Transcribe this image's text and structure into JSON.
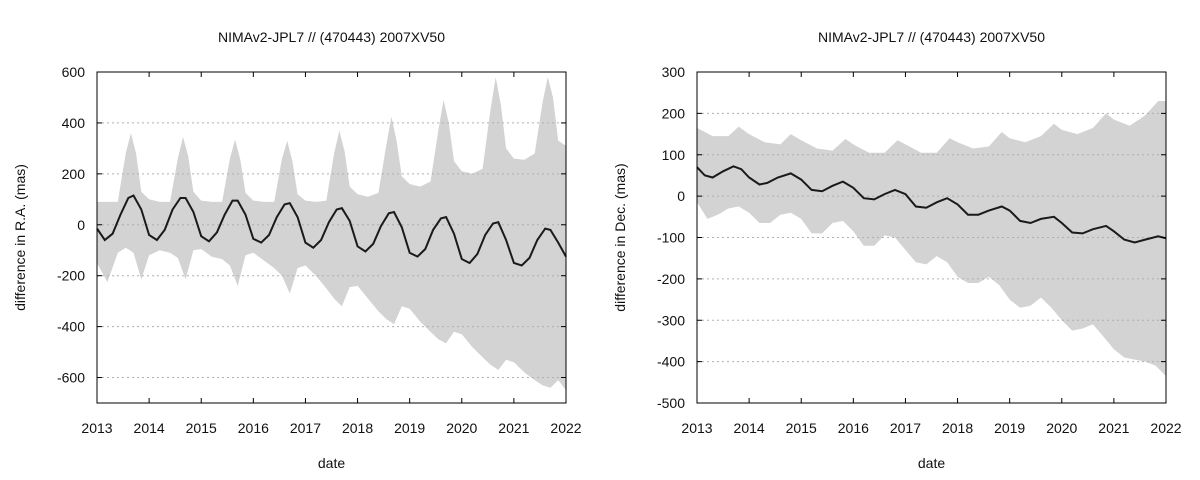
{
  "chart_data": [
    {
      "type": "area",
      "title": "NIMAv2-JPL7 // (470443) 2007XV50",
      "xlabel": "date",
      "ylabel": "difference in R.A. (mas)",
      "xlim": [
        2013,
        2022
      ],
      "ylim": [
        -700,
        600
      ],
      "xticks": [
        "2013",
        "2014",
        "2015",
        "2016",
        "2017",
        "2018",
        "2019",
        "2020",
        "2021",
        "2022"
      ],
      "yticks": [
        -600,
        -400,
        -200,
        0,
        200,
        400,
        600
      ],
      "grid": "horizontal-dotted",
      "band_color": "#d3d3d3",
      "line_color": "#1a1a1a",
      "band_upper": {
        "x": [
          2013.0,
          2013.2,
          2013.4,
          2013.55,
          2013.65,
          2013.75,
          2013.85,
          2014.0,
          2014.2,
          2014.4,
          2014.55,
          2014.65,
          2014.75,
          2014.85,
          2015.0,
          2015.2,
          2015.4,
          2015.55,
          2015.65,
          2015.75,
          2015.85,
          2016.0,
          2016.2,
          2016.4,
          2016.55,
          2016.65,
          2016.75,
          2016.85,
          2017.0,
          2017.2,
          2017.4,
          2017.55,
          2017.65,
          2017.75,
          2017.85,
          2018.0,
          2018.2,
          2018.4,
          2018.55,
          2018.65,
          2018.75,
          2018.85,
          2019.0,
          2019.2,
          2019.4,
          2019.55,
          2019.65,
          2019.75,
          2019.85,
          2020.0,
          2020.2,
          2020.4,
          2020.55,
          2020.65,
          2020.75,
          2020.85,
          2021.0,
          2021.2,
          2021.4,
          2021.55,
          2021.65,
          2021.75,
          2021.85,
          2022.0
        ],
        "y": [
          90,
          90,
          90,
          280,
          360,
          280,
          130,
          100,
          90,
          90,
          260,
          345,
          270,
          130,
          95,
          90,
          90,
          260,
          335,
          255,
          125,
          95,
          90,
          90,
          260,
          330,
          250,
          120,
          95,
          90,
          95,
          280,
          370,
          290,
          150,
          120,
          110,
          125,
          310,
          425,
          330,
          190,
          160,
          150,
          170,
          370,
          490,
          400,
          250,
          210,
          200,
          220,
          450,
          580,
          470,
          300,
          260,
          255,
          280,
          480,
          580,
          500,
          330,
          310
        ]
      },
      "band_lower": {
        "x": [
          2013.0,
          2013.2,
          2013.4,
          2013.55,
          2013.7,
          2013.85,
          2014.0,
          2014.2,
          2014.4,
          2014.55,
          2014.7,
          2014.85,
          2015.0,
          2015.2,
          2015.4,
          2015.55,
          2015.7,
          2015.85,
          2016.0,
          2016.2,
          2016.4,
          2016.55,
          2016.7,
          2016.85,
          2017.0,
          2017.2,
          2017.4,
          2017.55,
          2017.7,
          2017.85,
          2018.0,
          2018.2,
          2018.4,
          2018.55,
          2018.7,
          2018.85,
          2019.0,
          2019.2,
          2019.4,
          2019.55,
          2019.7,
          2019.85,
          2020.0,
          2020.2,
          2020.4,
          2020.55,
          2020.7,
          2020.85,
          2021.0,
          2021.2,
          2021.4,
          2021.55,
          2021.7,
          2021.85,
          2022.0
        ],
        "y": [
          -150,
          -225,
          -110,
          -90,
          -110,
          -215,
          -120,
          -100,
          -110,
          -130,
          -215,
          -100,
          -95,
          -125,
          -135,
          -160,
          -240,
          -120,
          -110,
          -140,
          -170,
          -200,
          -270,
          -170,
          -160,
          -200,
          -250,
          -290,
          -320,
          -245,
          -240,
          -290,
          -340,
          -370,
          -390,
          -320,
          -330,
          -380,
          -420,
          -450,
          -465,
          -420,
          -430,
          -480,
          -520,
          -550,
          -570,
          -530,
          -540,
          -580,
          -610,
          -630,
          -640,
          -610,
          -650
        ]
      },
      "series": [
        {
          "x": [
            2013.0,
            2013.15,
            2013.3,
            2013.45,
            2013.6,
            2013.7,
            2013.85,
            2014.0,
            2014.15,
            2014.3,
            2014.45,
            2014.6,
            2014.7,
            2014.85,
            2015.0,
            2015.15,
            2015.3,
            2015.45,
            2015.6,
            2015.7,
            2015.85,
            2016.0,
            2016.15,
            2016.3,
            2016.45,
            2016.6,
            2016.7,
            2016.85,
            2017.0,
            2017.15,
            2017.3,
            2017.45,
            2017.6,
            2017.7,
            2017.85,
            2018.0,
            2018.15,
            2018.3,
            2018.45,
            2018.6,
            2018.7,
            2018.85,
            2019.0,
            2019.15,
            2019.3,
            2019.45,
            2019.6,
            2019.7,
            2019.85,
            2020.0,
            2020.15,
            2020.3,
            2020.45,
            2020.6,
            2020.7,
            2020.85,
            2021.0,
            2021.15,
            2021.3,
            2021.45,
            2021.6,
            2021.7,
            2021.85,
            2022.0
          ],
          "y": [
            -15,
            -60,
            -35,
            40,
            105,
            115,
            60,
            -40,
            -60,
            -20,
            60,
            105,
            105,
            50,
            -45,
            -65,
            -30,
            40,
            95,
            95,
            40,
            -55,
            -70,
            -40,
            30,
            80,
            85,
            30,
            -70,
            -90,
            -60,
            10,
            60,
            65,
            15,
            -85,
            -105,
            -75,
            -5,
            45,
            50,
            -10,
            -110,
            -125,
            -95,
            -20,
            25,
            30,
            -35,
            -135,
            -150,
            -115,
            -40,
            5,
            10,
            -60,
            -150,
            -160,
            -130,
            -60,
            -15,
            -20,
            -70,
            -125
          ]
        }
      ]
    },
    {
      "type": "area",
      "title": "NIMAv2-JPL7 // (470443) 2007XV50",
      "xlabel": "date",
      "ylabel": "difference in Dec. (mas)",
      "xlim": [
        2013,
        2022
      ],
      "ylim": [
        -500,
        300
      ],
      "xticks": [
        "2013",
        "2014",
        "2015",
        "2016",
        "2017",
        "2018",
        "2019",
        "2020",
        "2021",
        "2022"
      ],
      "yticks": [
        -500,
        -400,
        -300,
        -200,
        -100,
        0,
        100,
        200,
        300
      ],
      "grid": "horizontal-dotted",
      "band_color": "#d3d3d3",
      "line_color": "#1a1a1a",
      "band_upper": {
        "x": [
          2013.0,
          2013.3,
          2013.6,
          2013.8,
          2014.0,
          2014.3,
          2014.6,
          2014.8,
          2015.0,
          2015.3,
          2015.6,
          2015.85,
          2016.0,
          2016.3,
          2016.6,
          2016.85,
          2017.0,
          2017.3,
          2017.6,
          2017.85,
          2018.0,
          2018.3,
          2018.6,
          2018.85,
          2019.0,
          2019.3,
          2019.6,
          2019.85,
          2020.0,
          2020.3,
          2020.6,
          2020.85,
          2021.0,
          2021.3,
          2021.6,
          2021.85,
          2022.0
        ],
        "y": [
          165,
          145,
          145,
          168,
          150,
          130,
          125,
          150,
          135,
          115,
          110,
          138,
          125,
          105,
          105,
          135,
          125,
          105,
          105,
          140,
          130,
          115,
          120,
          155,
          140,
          130,
          145,
          175,
          160,
          150,
          165,
          200,
          185,
          170,
          195,
          230,
          230
        ]
      },
      "band_lower": {
        "x": [
          2013.0,
          2013.2,
          2013.4,
          2013.6,
          2013.8,
          2014.0,
          2014.2,
          2014.4,
          2014.6,
          2014.8,
          2015.0,
          2015.2,
          2015.4,
          2015.6,
          2015.8,
          2016.0,
          2016.2,
          2016.4,
          2016.6,
          2016.8,
          2017.0,
          2017.2,
          2017.4,
          2017.6,
          2017.8,
          2018.0,
          2018.2,
          2018.4,
          2018.6,
          2018.8,
          2019.0,
          2019.2,
          2019.4,
          2019.6,
          2019.8,
          2020.0,
          2020.2,
          2020.4,
          2020.6,
          2020.8,
          2021.0,
          2021.2,
          2021.4,
          2021.6,
          2021.8,
          2022.0
        ],
        "y": [
          -15,
          -55,
          -45,
          -30,
          -25,
          -40,
          -65,
          -65,
          -45,
          -40,
          -55,
          -90,
          -90,
          -65,
          -60,
          -85,
          -120,
          -120,
          -95,
          -100,
          -130,
          -160,
          -165,
          -145,
          -160,
          -195,
          -210,
          -210,
          -195,
          -215,
          -250,
          -270,
          -265,
          -245,
          -270,
          -300,
          -325,
          -320,
          -310,
          -340,
          -370,
          -390,
          -395,
          -400,
          -410,
          -435
        ]
      },
      "series": [
        {
          "x": [
            2013.0,
            2013.15,
            2013.3,
            2013.5,
            2013.7,
            2013.85,
            2014.0,
            2014.2,
            2014.35,
            2014.55,
            2014.8,
            2015.0,
            2015.2,
            2015.4,
            2015.6,
            2015.8,
            2016.0,
            2016.2,
            2016.4,
            2016.6,
            2016.8,
            2017.0,
            2017.2,
            2017.4,
            2017.6,
            2017.8,
            2018.0,
            2018.2,
            2018.4,
            2018.6,
            2018.85,
            2019.0,
            2019.2,
            2019.4,
            2019.6,
            2019.85,
            2020.0,
            2020.2,
            2020.4,
            2020.6,
            2020.85,
            2021.0,
            2021.2,
            2021.4,
            2021.6,
            2021.85,
            2022.0
          ],
          "y": [
            70,
            50,
            45,
            60,
            72,
            65,
            45,
            28,
            32,
            45,
            55,
            40,
            15,
            12,
            25,
            35,
            20,
            -5,
            -8,
            5,
            15,
            5,
            -25,
            -28,
            -15,
            -5,
            -20,
            -45,
            -45,
            -35,
            -25,
            -35,
            -60,
            -65,
            -55,
            -50,
            -65,
            -88,
            -90,
            -80,
            -72,
            -85,
            -105,
            -112,
            -105,
            -97,
            -102
          ]
        }
      ]
    }
  ]
}
